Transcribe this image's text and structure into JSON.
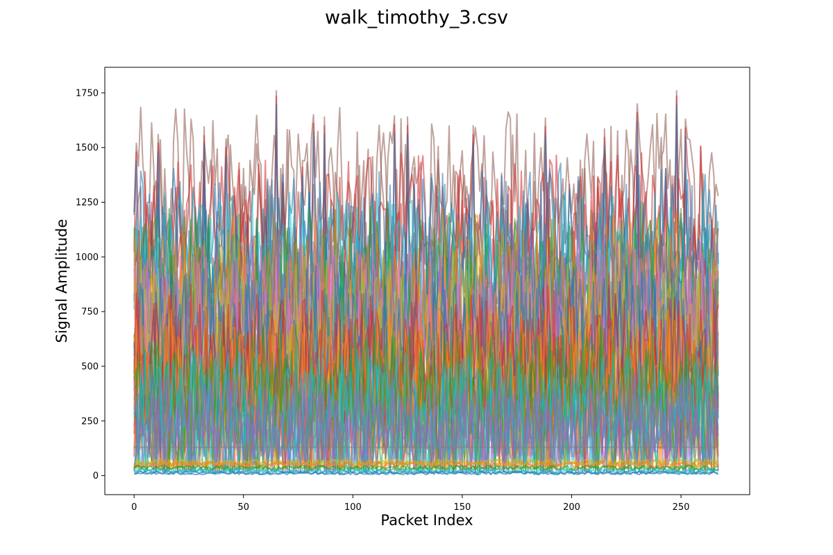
{
  "chart_data": {
    "type": "line",
    "title": "walk_timothy_3.csv",
    "xlabel": "Packet Index",
    "ylabel": "Signal Amplitude",
    "xlim": [
      -13.4,
      281.4
    ],
    "ylim": [
      -87,
      1867
    ],
    "x_ticks": [
      0,
      50,
      100,
      150,
      200,
      250
    ],
    "y_ticks": [
      0,
      250,
      500,
      750,
      1000,
      1250,
      1500,
      1750
    ],
    "grid": false,
    "legend": "none",
    "n_points": 268,
    "x_range": [
      0,
      267
    ],
    "series_count_estimate": 60,
    "peaks": [
      {
        "x": 1,
        "y": 1520
      },
      {
        "x": 11,
        "y": 1560
      },
      {
        "x": 32,
        "y": 1595
      },
      {
        "x": 42,
        "y": 1540
      },
      {
        "x": 65,
        "y": 1775
      },
      {
        "x": 82,
        "y": 1650
      },
      {
        "x": 87,
        "y": 1640
      },
      {
        "x": 119,
        "y": 1645
      },
      {
        "x": 125,
        "y": 1640
      },
      {
        "x": 155,
        "y": 1600
      },
      {
        "x": 188,
        "y": 1635
      },
      {
        "x": 215,
        "y": 1585
      },
      {
        "x": 230,
        "y": 1700
      },
      {
        "x": 248,
        "y": 1775
      },
      {
        "x": 252,
        "y": 1630
      }
    ],
    "series_bands": [
      {
        "name": "",
        "level": 1100,
        "amplitude": 420,
        "color": "#8c564b"
      },
      {
        "name": "",
        "level": 950,
        "amplitude": 400,
        "color": "#d62728"
      },
      {
        "name": "",
        "level": 850,
        "amplitude": 420,
        "color": "#1f77b4"
      },
      {
        "name": "",
        "level": 800,
        "amplitude": 380,
        "color": "#17becf"
      },
      {
        "name": "",
        "level": 700,
        "amplitude": 400,
        "color": "#2ca02c"
      },
      {
        "name": "",
        "level": 650,
        "amplitude": 420,
        "color": "#ff7f0e"
      },
      {
        "name": "",
        "level": 600,
        "amplitude": 400,
        "color": "#9467bd"
      },
      {
        "name": "",
        "level": 550,
        "amplitude": 380,
        "color": "#e377c2"
      },
      {
        "name": "",
        "level": 500,
        "amplitude": 400,
        "color": "#bcbd22"
      },
      {
        "name": "",
        "level": 450,
        "amplitude": 380,
        "color": "#1f77b4"
      },
      {
        "name": "",
        "level": 400,
        "amplitude": 350,
        "color": "#d62728"
      },
      {
        "name": "",
        "level": 350,
        "amplitude": 320,
        "color": "#ff7f0e"
      },
      {
        "name": "",
        "level": 300,
        "amplitude": 280,
        "color": "#2ca02c"
      },
      {
        "name": "",
        "level": 250,
        "amplitude": 250,
        "color": "#17becf"
      },
      {
        "name": "",
        "level": 200,
        "amplitude": 200,
        "color": "#9467bd"
      },
      {
        "name": "",
        "level": 130,
        "amplitude": 0,
        "color": "#7f7f7f"
      },
      {
        "name": "",
        "level": 60,
        "amplitude": 15,
        "color": "#bcbd22"
      },
      {
        "name": "",
        "level": 50,
        "amplitude": 15,
        "color": "#ff7f0e"
      },
      {
        "name": "",
        "level": 35,
        "amplitude": 12,
        "color": "#2ca02c"
      },
      {
        "name": "",
        "level": 20,
        "amplitude": 10,
        "color": "#17becf"
      },
      {
        "name": "",
        "level": 12,
        "amplitude": 8,
        "color": "#1f77b4"
      }
    ]
  }
}
